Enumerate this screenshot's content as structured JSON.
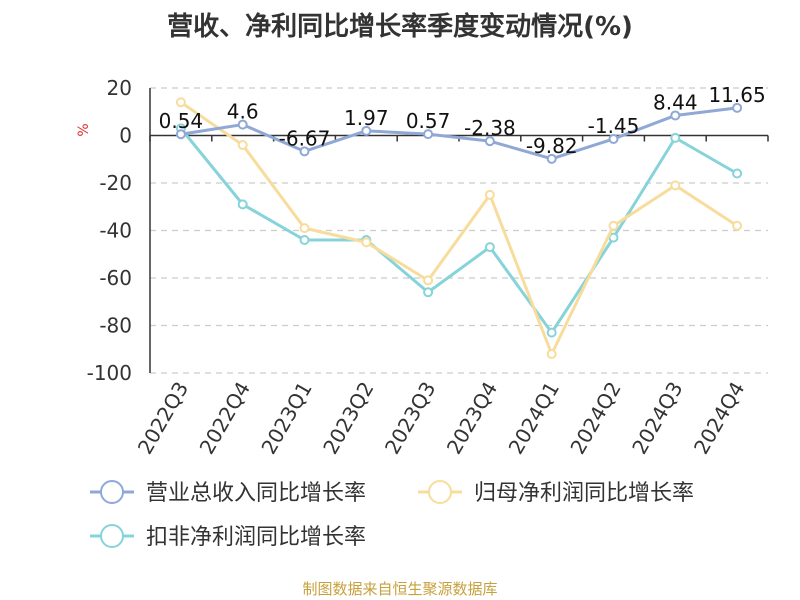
{
  "chart_data": {
    "type": "line",
    "title": "营收、净利同比增长率季度变动情况(%)",
    "ylabel": "%",
    "xlabel": "",
    "ylim": [
      -100,
      20
    ],
    "yticks": [
      20,
      0,
      -20,
      -40,
      -60,
      -80,
      -100
    ],
    "grid": true,
    "legend_position": "bottom",
    "categories": [
      "2022Q3",
      "2022Q4",
      "2023Q1",
      "2023Q2",
      "2023Q3",
      "2023Q4",
      "2024Q1",
      "2024Q2",
      "2024Q3",
      "2024Q4"
    ],
    "series": [
      {
        "name": "营业总收入同比增长率",
        "color": "#8fa8d6",
        "values": [
          0.54,
          4.6,
          -6.67,
          1.97,
          0.57,
          -2.38,
          -9.82,
          -1.45,
          8.44,
          11.65
        ],
        "labels": [
          "0.54",
          "4.6",
          "-6.67",
          "1.97",
          "0.57",
          "-2.38",
          "-9.82",
          "-1.45",
          "8.44",
          "11.65"
        ]
      },
      {
        "name": "归母净利润同比增长率",
        "color": "#f7dc9c",
        "values": [
          14,
          -4,
          -39,
          -45,
          -61,
          -25,
          -92,
          -38,
          -21,
          -38
        ]
      },
      {
        "name": "扣非净利润同比增长率",
        "color": "#86d3d9",
        "values": [
          3,
          -29,
          -44,
          -44,
          -66,
          -47,
          -83,
          -43,
          -1,
          -16
        ]
      }
    ]
  },
  "source_note": "制图数据来自恒生聚源数据库"
}
